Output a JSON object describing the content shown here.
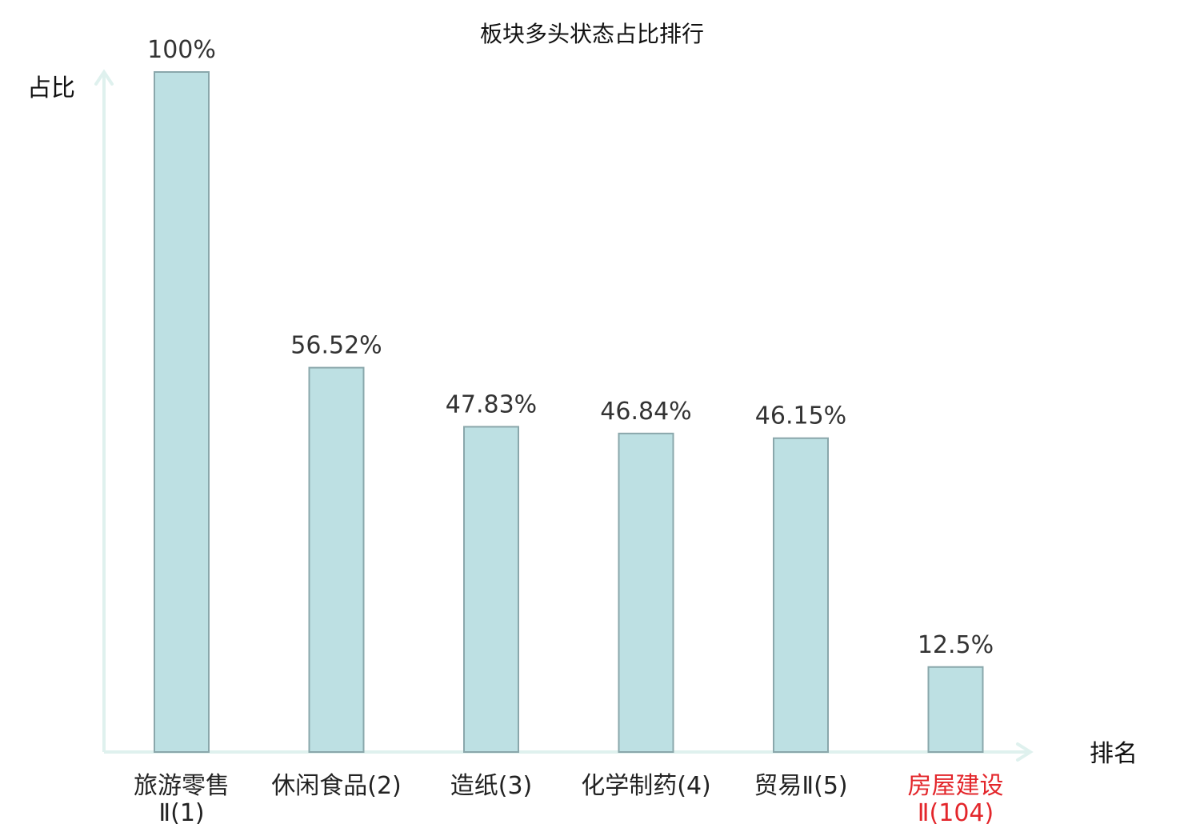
{
  "chart_data": {
    "type": "bar",
    "title": "板块多头状态占比排行",
    "xlabel": "排名",
    "ylabel": "占比",
    "ylim": [
      0,
      100
    ],
    "grid": false,
    "legend": "none",
    "categories": [
      {
        "name": "旅游零售",
        "suffix": "Ⅱ(1)",
        "highlight": false
      },
      {
        "name": "休闲食品",
        "suffix": "(2)",
        "highlight": false
      },
      {
        "name": "造纸",
        "suffix": "(3)",
        "highlight": false
      },
      {
        "name": "化学制药",
        "suffix": "(4)",
        "highlight": false
      },
      {
        "name": "贸易Ⅱ",
        "suffix": "(5)",
        "highlight": false
      },
      {
        "name": "房屋建设",
        "suffix": "Ⅱ(104)",
        "highlight": true
      }
    ],
    "values": [
      100,
      56.52,
      47.83,
      46.84,
      46.15,
      12.5
    ],
    "value_labels": [
      "100%",
      "56.52%",
      "47.83%",
      "46.84%",
      "46.15%",
      "12.5%"
    ]
  },
  "colors": {
    "bar_fill": "#bde0e3",
    "bar_stroke": "#8aa7ab",
    "axis": "#dff1ee",
    "text": "#222222",
    "highlight": "#e3262b"
  }
}
